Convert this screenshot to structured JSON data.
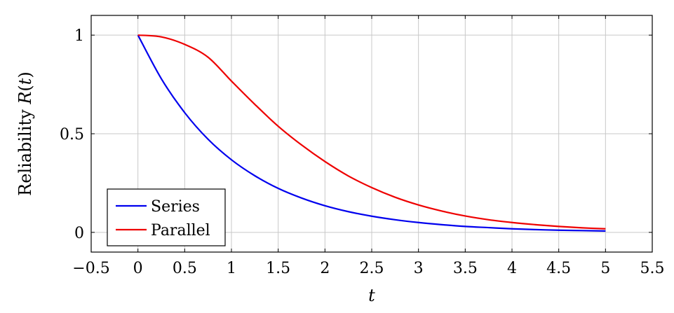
{
  "chart_data": {
    "type": "line",
    "title": "",
    "xlabel": "t",
    "ylabel": "Reliability R(t)",
    "xlim": [
      -0.5,
      5.5
    ],
    "ylim": [
      -0.1,
      1.1
    ],
    "xticks": [
      -0.5,
      0,
      0.5,
      1,
      1.5,
      2,
      2.5,
      3,
      3.5,
      4,
      4.5,
      5,
      5.5
    ],
    "xtick_labels": [
      "−0.5",
      "0",
      "0.5",
      "1",
      "1.5",
      "2",
      "2.5",
      "3",
      "3.5",
      "4",
      "4.5",
      "5",
      "5.5"
    ],
    "yticks": [
      0,
      0.5,
      1
    ],
    "ytick_labels": [
      "0",
      "0.5",
      "1"
    ],
    "grid": true,
    "legend_position": "bottom-left",
    "series": [
      {
        "name": "Series",
        "color": "#0000ee",
        "x": [
          0,
          0.25,
          0.5,
          0.75,
          1,
          1.25,
          1.5,
          1.75,
          2,
          2.25,
          2.5,
          2.75,
          3,
          3.25,
          3.5,
          3.75,
          4,
          4.25,
          4.5,
          4.75,
          5
        ],
        "y": [
          1,
          0.779,
          0.607,
          0.472,
          0.368,
          0.287,
          0.223,
          0.174,
          0.135,
          0.105,
          0.082,
          0.064,
          0.05,
          0.039,
          0.03,
          0.024,
          0.018,
          0.014,
          0.011,
          0.009,
          0.007
        ]
      },
      {
        "name": "Parallel",
        "color": "#ee0000",
        "x": [
          0,
          0.25,
          0.5,
          0.75,
          1,
          1.25,
          1.5,
          1.75,
          2,
          2.25,
          2.5,
          2.75,
          3,
          3.25,
          3.5,
          3.75,
          4,
          4.25,
          4.5,
          4.75,
          5
        ],
        "y": [
          1,
          0.991,
          0.953,
          0.888,
          0.767,
          0.649,
          0.538,
          0.443,
          0.359,
          0.286,
          0.227,
          0.178,
          0.139,
          0.108,
          0.083,
          0.064,
          0.05,
          0.039,
          0.03,
          0.023,
          0.018
        ]
      }
    ]
  }
}
